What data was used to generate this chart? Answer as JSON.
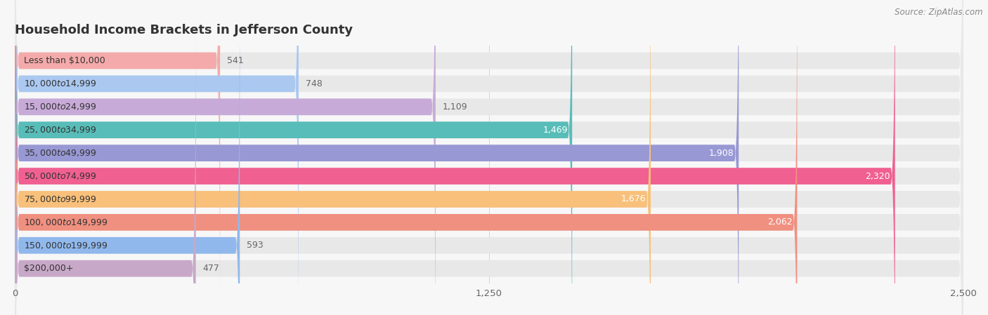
{
  "title": "Household Income Brackets in Jefferson County",
  "source": "Source: ZipAtlas.com",
  "categories": [
    "Less than $10,000",
    "$10,000 to $14,999",
    "$15,000 to $24,999",
    "$25,000 to $34,999",
    "$35,000 to $49,999",
    "$50,000 to $74,999",
    "$75,000 to $99,999",
    "$100,000 to $149,999",
    "$150,000 to $199,999",
    "$200,000+"
  ],
  "values": [
    541,
    748,
    1109,
    1469,
    1908,
    2320,
    1676,
    2062,
    593,
    477
  ],
  "bar_colors": [
    "#F4AAAA",
    "#AAC8F0",
    "#C8AAD8",
    "#58BDB8",
    "#9898D4",
    "#F06090",
    "#F8C07A",
    "#F09080",
    "#90B8EC",
    "#C8A8C8"
  ],
  "xlim": [
    0,
    2500
  ],
  "xticks": [
    0,
    1250,
    2500
  ],
  "background_color": "#f7f7f7",
  "bar_bg_color": "#e8e8e8",
  "title_fontsize": 13,
  "label_fontsize": 9,
  "value_fontsize": 9,
  "bar_height": 0.72,
  "value_threshold_inside": 1200,
  "inside_value_color": "#ffffff",
  "outside_value_color": "#666666"
}
